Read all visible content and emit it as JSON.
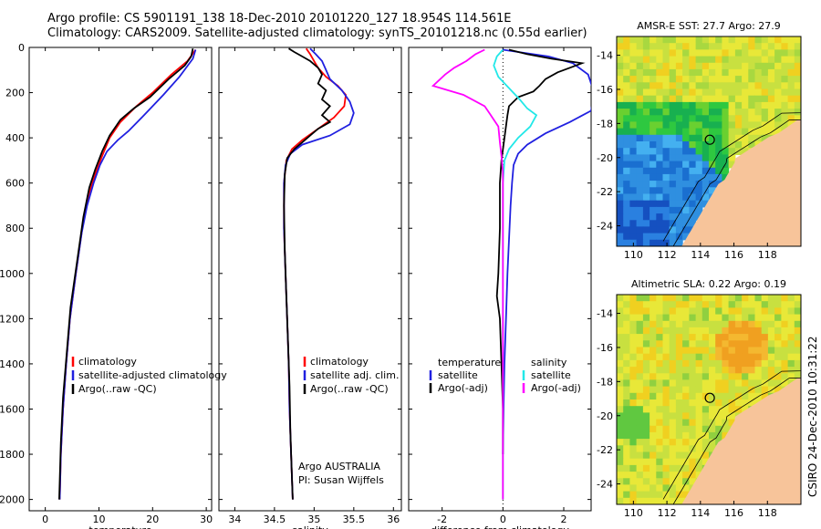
{
  "header": {
    "title_line1": "Argo profile: CS 5901191_138 18-Dec-2010 20101220_127 18.954S 114.561E",
    "title_line2": "Climatology: CARS2009. Satellite-adjusted climatology: synTS_20101218.nc (0.55d earlier)"
  },
  "footer": {
    "credit": "CSIRO 24-Dec-2010 10:31:22",
    "argo_label": "Argo AUSTRALIA",
    "pi_label": "PI: Susan Wijffels"
  },
  "colors": {
    "red": "#ff0000",
    "blue": "#2020e0",
    "black": "#000000",
    "cyan": "#22e8e8",
    "magenta": "#ff00ff",
    "land": "#f7c49a"
  },
  "chart_data": [
    {
      "type": "line",
      "xlabel": "temperature",
      "ylabel": "",
      "xlim": [
        -3,
        31
      ],
      "ylim": [
        2050,
        0
      ],
      "xticks": [
        0,
        10,
        20,
        30
      ],
      "yticks": [
        0,
        200,
        400,
        600,
        800,
        1000,
        1200,
        1400,
        1600,
        1800,
        2000
      ],
      "legend": {
        "placement": "lower-right",
        "entries": [
          "climatology",
          "satellite-adjusted climatology",
          "Argo(..raw -QC)"
        ]
      },
      "series": [
        {
          "name": "climatology",
          "color": "red",
          "points": [
            [
              28.0,
              10
            ],
            [
              26.5,
              60
            ],
            [
              23.5,
              120
            ],
            [
              20,
              200
            ],
            [
              17,
              260
            ],
            [
              14,
              330
            ],
            [
              12,
              400
            ],
            [
              10.6,
              480
            ],
            [
              9.3,
              560
            ],
            [
              8.1,
              650
            ],
            [
              6.9,
              800
            ],
            [
              5.7,
              1000
            ],
            [
              4.6,
              1200
            ],
            [
              3.9,
              1400
            ],
            [
              3.3,
              1600
            ],
            [
              2.9,
              1800
            ],
            [
              2.7,
              2000
            ]
          ]
        },
        {
          "name": "satellite-adjusted climatology",
          "color": "blue",
          "points": [
            [
              28.0,
              10
            ],
            [
              27.5,
              50
            ],
            [
              25,
              130
            ],
            [
              22,
              210
            ],
            [
              18,
              310
            ],
            [
              15.5,
              370
            ],
            [
              13.5,
              410
            ],
            [
              11.5,
              460
            ],
            [
              10.2,
              520
            ],
            [
              9.0,
              600
            ],
            [
              7.8,
              700
            ],
            [
              6.8,
              820
            ],
            [
              5.7,
              1000
            ],
            [
              4.6,
              1200
            ],
            [
              3.9,
              1400
            ],
            [
              3.3,
              1600
            ],
            [
              2.9,
              1800
            ],
            [
              2.7,
              2000
            ]
          ]
        },
        {
          "name": "Argo(..raw -QC)",
          "color": "black",
          "points": [
            [
              27.5,
              5
            ],
            [
              27.2,
              40
            ],
            [
              26,
              80
            ],
            [
              23,
              140
            ],
            [
              19.5,
              220
            ],
            [
              16.5,
              270
            ],
            [
              14,
              320
            ],
            [
              12,
              390
            ],
            [
              10.6,
              460
            ],
            [
              9.3,
              540
            ],
            [
              8.2,
              620
            ],
            [
              7.1,
              750
            ],
            [
              5.9,
              950
            ],
            [
              4.7,
              1150
            ],
            [
              4.0,
              1350
            ],
            [
              3.3,
              1550
            ],
            [
              2.9,
              1750
            ],
            [
              2.6,
              2000
            ]
          ]
        }
      ]
    },
    {
      "type": "line",
      "xlabel": "salinity",
      "xlim": [
        33.8,
        36.1
      ],
      "ylim": [
        2050,
        0
      ],
      "xticks": [
        34,
        34.5,
        35,
        35.5,
        36
      ],
      "legend": {
        "placement": "lower-right",
        "entries": [
          "climatology",
          "satellite adj. clim.",
          "Argo(..raw -QC)"
        ]
      },
      "series": [
        {
          "name": "climatology",
          "color": "red",
          "points": [
            [
              34.9,
              5
            ],
            [
              34.95,
              30
            ],
            [
              35.0,
              60
            ],
            [
              35.05,
              90
            ],
            [
              35.15,
              130
            ],
            [
              35.3,
              170
            ],
            [
              35.4,
              210
            ],
            [
              35.38,
              260
            ],
            [
              35.25,
              310
            ],
            [
              35.05,
              360
            ],
            [
              34.85,
              410
            ],
            [
              34.72,
              450
            ],
            [
              34.65,
              500
            ],
            [
              34.62,
              600
            ],
            [
              34.62,
              800
            ],
            [
              34.64,
              1000
            ],
            [
              34.66,
              1200
            ],
            [
              34.68,
              1400
            ],
            [
              34.69,
              1600
            ],
            [
              34.71,
              1800
            ],
            [
              34.73,
              2000
            ]
          ]
        },
        {
          "name": "satellite adj. clim.",
          "color": "blue",
          "points": [
            [
              34.95,
              5
            ],
            [
              35.02,
              30
            ],
            [
              35.1,
              60
            ],
            [
              35.15,
              100
            ],
            [
              35.2,
              140
            ],
            [
              35.35,
              190
            ],
            [
              35.45,
              240
            ],
            [
              35.5,
              290
            ],
            [
              35.45,
              340
            ],
            [
              35.2,
              390
            ],
            [
              34.85,
              430
            ],
            [
              34.7,
              470
            ],
            [
              34.64,
              520
            ],
            [
              34.62,
              600
            ],
            [
              34.62,
              800
            ],
            [
              34.64,
              1000
            ],
            [
              34.66,
              1200
            ],
            [
              34.68,
              1400
            ],
            [
              34.69,
              1600
            ],
            [
              34.71,
              1800
            ],
            [
              34.73,
              2000
            ]
          ]
        },
        {
          "name": "Argo(..raw -QC)",
          "color": "black",
          "points": [
            [
              34.68,
              5
            ],
            [
              34.75,
              20
            ],
            [
              34.85,
              40
            ],
            [
              34.95,
              60
            ],
            [
              35.05,
              90
            ],
            [
              35.1,
              120
            ],
            [
              35.05,
              160
            ],
            [
              35.15,
              190
            ],
            [
              35.1,
              230
            ],
            [
              35.2,
              260
            ],
            [
              35.1,
              300
            ],
            [
              35.2,
              330
            ],
            [
              35.05,
              360
            ],
            [
              34.95,
              390
            ],
            [
              34.85,
              420
            ],
            [
              34.75,
              450
            ],
            [
              34.66,
              490
            ],
            [
              34.63,
              560
            ],
            [
              34.62,
              700
            ],
            [
              34.63,
              900
            ],
            [
              34.65,
              1100
            ],
            [
              34.67,
              1300
            ],
            [
              34.69,
              1500
            ],
            [
              34.7,
              1700
            ],
            [
              34.72,
              1900
            ],
            [
              34.73,
              2000
            ]
          ]
        }
      ]
    },
    {
      "type": "line",
      "xlabel": "difference from climatology",
      "xlim": [
        -3.1,
        2.9
      ],
      "ylim": [
        2050,
        0
      ],
      "xticks": [
        -2,
        0,
        2
      ],
      "legend": {
        "placement": "lower-center",
        "entries": [
          "temperature",
          "satellite",
          "Argo(-adj)",
          "salinity",
          "satellite",
          "Argo(-adj)"
        ]
      },
      "series": [
        {
          "name": "temperature satellite",
          "color": "blue",
          "points": [
            [
              0,
              10
            ],
            [
              0.5,
              20
            ],
            [
              1.5,
              40
            ],
            [
              2.3,
              70
            ],
            [
              2.8,
              120
            ],
            [
              3.0,
              200
            ],
            [
              2.9,
              280
            ],
            [
              2.2,
              330
            ],
            [
              1.4,
              380
            ],
            [
              0.8,
              430
            ],
            [
              0.5,
              470
            ],
            [
              0.35,
              520
            ],
            [
              0.3,
              600
            ],
            [
              0.25,
              700
            ],
            [
              0.2,
              850
            ],
            [
              0.15,
              1000
            ],
            [
              0.1,
              1200
            ],
            [
              0.05,
              1400
            ],
            [
              0.02,
              1600
            ],
            [
              0.0,
              1800
            ]
          ]
        },
        {
          "name": "temperature Argo(-adj)",
          "color": "black",
          "points": [
            [
              0.2,
              10
            ],
            [
              0.8,
              30
            ],
            [
              1.6,
              50
            ],
            [
              2.6,
              70
            ],
            [
              2.2,
              90
            ],
            [
              1.8,
              110
            ],
            [
              1.4,
              140
            ],
            [
              1.2,
              170
            ],
            [
              1.0,
              195
            ],
            [
              0.5,
              220
            ],
            [
              0.2,
              260
            ],
            [
              0.15,
              300
            ],
            [
              0.05,
              400
            ],
            [
              -0.05,
              500
            ],
            [
              -0.1,
              600
            ],
            [
              -0.1,
              800
            ],
            [
              -0.15,
              1000
            ],
            [
              -0.2,
              1100
            ],
            [
              -0.1,
              1200
            ],
            [
              -0.05,
              1400
            ],
            [
              0.0,
              1600
            ],
            [
              0.0,
              1800
            ]
          ]
        },
        {
          "name": "salinity satellite",
          "color": "cyan",
          "points": [
            [
              0,
              10
            ],
            [
              -0.2,
              40
            ],
            [
              -0.3,
              80
            ],
            [
              -0.15,
              130
            ],
            [
              0.2,
              180
            ],
            [
              0.55,
              230
            ],
            [
              0.8,
              270
            ],
            [
              1.1,
              300
            ],
            [
              0.9,
              350
            ],
            [
              0.5,
              400
            ],
            [
              0.2,
              450
            ],
            [
              0.05,
              500
            ],
            [
              0.0,
              600
            ],
            [
              0.0,
              800
            ],
            [
              0.0,
              1000
            ],
            [
              0.0,
              1200
            ],
            [
              0.0,
              1400
            ],
            [
              0.0,
              1600
            ],
            [
              0.0,
              1800
            ],
            [
              0.0,
              2000
            ]
          ]
        },
        {
          "name": "salinity Argo(-adj)",
          "color": "magenta",
          "points": [
            [
              -0.6,
              10
            ],
            [
              -0.9,
              30
            ],
            [
              -1.2,
              60
            ],
            [
              -1.6,
              90
            ],
            [
              -1.9,
              120
            ],
            [
              -2.3,
              170
            ],
            [
              -1.3,
              210
            ],
            [
              -0.6,
              260
            ],
            [
              -0.4,
              300
            ],
            [
              -0.15,
              350
            ],
            [
              -0.1,
              420
            ],
            [
              -0.05,
              480
            ],
            [
              0.0,
              550
            ],
            [
              0.0,
              700
            ],
            [
              0.0,
              900
            ],
            [
              0.0,
              1100
            ],
            [
              0.0,
              1300
            ],
            [
              0.0,
              1500
            ],
            [
              0.0,
              1700
            ],
            [
              0.0,
              1900
            ],
            [
              0.0,
              2000
            ]
          ]
        }
      ]
    },
    {
      "type": "heatmap",
      "title": "AMSR-E SST: 27.7 Argo: 27.9",
      "xticks": [
        110,
        112,
        114,
        116,
        118
      ],
      "yticks": [
        -14,
        -16,
        -18,
        -20,
        -22,
        -24
      ],
      "xlim": [
        109,
        120
      ],
      "ylim": [
        -25.2,
        -12.9
      ],
      "marker": {
        "lon": 114.561,
        "lat": -18.954
      }
    },
    {
      "type": "heatmap",
      "title": "Altimetric SLA: 0.22 Argo: 0.19",
      "xticks": [
        110,
        112,
        114,
        116,
        118
      ],
      "yticks": [
        -14,
        -16,
        -18,
        -20,
        -22,
        -24
      ],
      "xlim": [
        109,
        120
      ],
      "ylim": [
        -25.2,
        -12.9
      ],
      "marker": {
        "lon": 114.561,
        "lat": -18.954
      }
    }
  ]
}
